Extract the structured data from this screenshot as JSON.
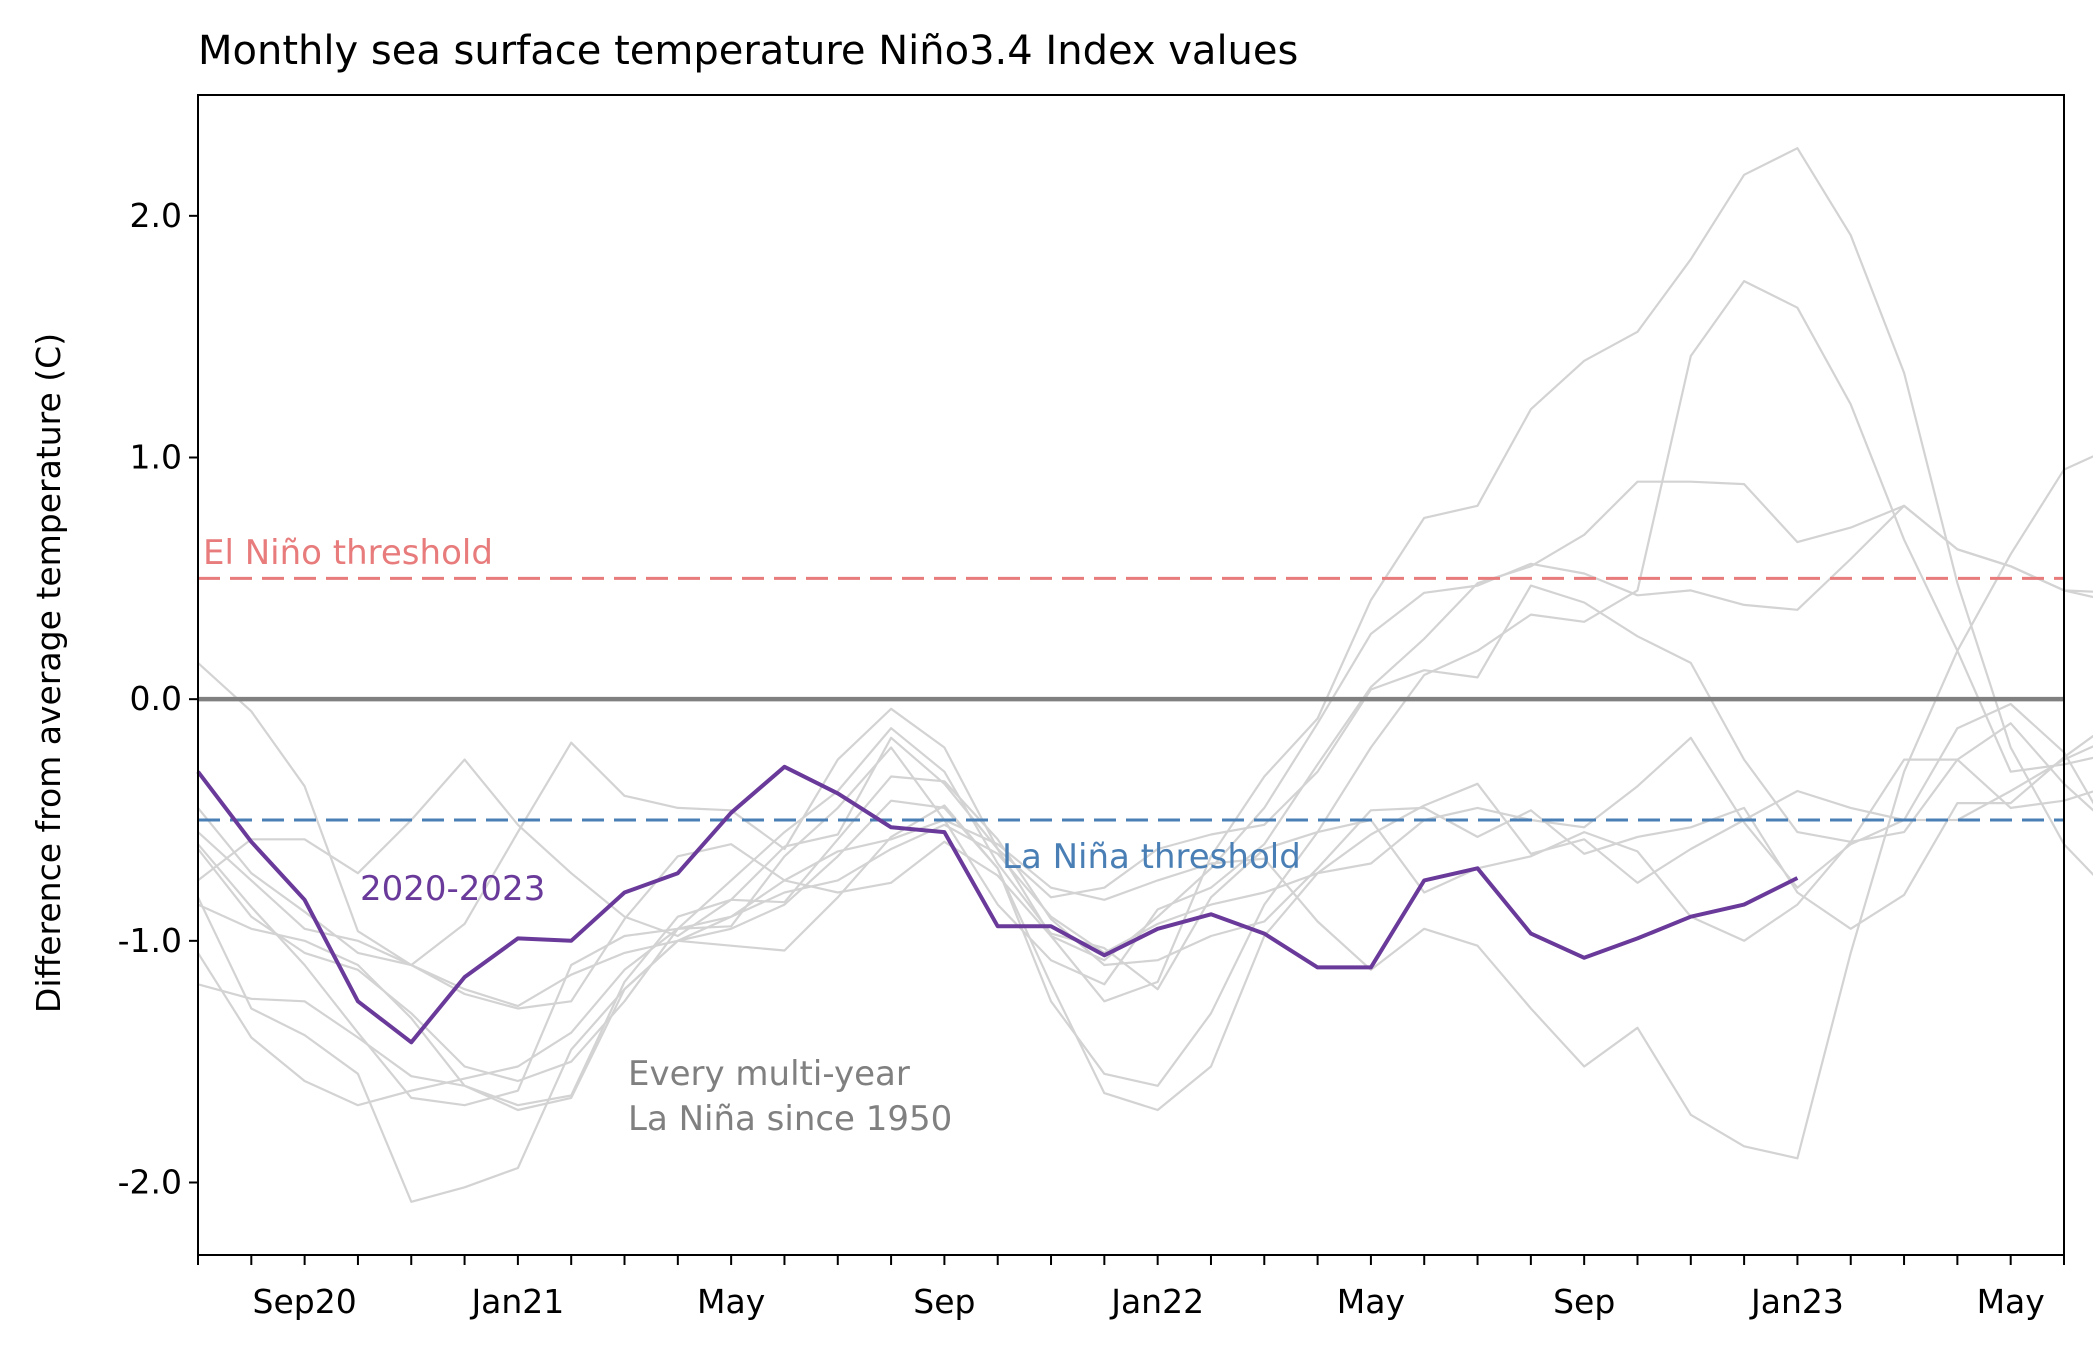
{
  "chart_data": {
    "type": "line",
    "title": "Monthly sea surface temperature Niño3.4 Index values",
    "xlabel": "",
    "ylabel": "Difference from average temperature (C)",
    "ylim": [
      -2.3,
      2.5
    ],
    "xlim": [
      "2020-07",
      "2023-06"
    ],
    "x_tick_labels": [
      {
        "month": "2020-09",
        "label": "Sep20"
      },
      {
        "month": "2021-01",
        "label": "Jan21"
      },
      {
        "month": "2021-05",
        "label": "May"
      },
      {
        "month": "2021-09",
        "label": "Sep"
      },
      {
        "month": "2022-01",
        "label": "Jan22"
      },
      {
        "month": "2022-05",
        "label": "May"
      },
      {
        "month": "2022-09",
        "label": "Sep"
      },
      {
        "month": "2023-01",
        "label": "Jan23"
      },
      {
        "month": "2023-05",
        "label": "May"
      }
    ],
    "y_ticks": [
      {
        "value": 2.0,
        "label": "2.0"
      },
      {
        "value": 1.0,
        "label": "1.0"
      },
      {
        "value": 0.0,
        "label": "0.0"
      },
      {
        "value": -1.0,
        "label": "-1.0"
      },
      {
        "value": -2.0,
        "label": "-2.0"
      }
    ],
    "reference_lines": [
      {
        "value": 0.5,
        "label": "El Niño threshold",
        "color": "#e87b7b",
        "style": "dashed"
      },
      {
        "value": -0.5,
        "label": "La Niña threshold",
        "color": "#4a7fb5",
        "style": "dashed"
      },
      {
        "value": 0.0,
        "label": "",
        "color": "#808080",
        "style": "solid"
      }
    ],
    "series": [
      {
        "name": "2020-2023",
        "color": "#6a3a9a",
        "highlight": true,
        "start": "2020-07",
        "values": [
          -0.3,
          -0.59,
          -0.83,
          -1.25,
          -1.42,
          -1.15,
          -0.99,
          -1.0,
          -0.8,
          -0.72,
          -0.47,
          -0.28,
          -0.39,
          -0.53,
          -0.55,
          -0.94,
          -0.94,
          -1.06,
          -0.95,
          -0.89,
          -0.97,
          -1.11,
          -1.11,
          -0.75,
          -0.7,
          -0.97,
          -1.07,
          -0.99,
          -0.9,
          -0.85,
          -0.74
        ]
      }
    ],
    "background_series": {
      "label": "Every multi-year\nLa Niña since 1950",
      "color": "#d3d3d3",
      "start": "2020-07",
      "lines": [
        [
          0.15,
          -0.05,
          -0.36,
          -0.96,
          -1.1,
          -0.93,
          -0.55,
          -0.18,
          -0.4,
          -0.45,
          -0.46,
          -0.62,
          -0.25,
          -0.04,
          -0.2,
          -0.62,
          -0.98,
          -1.25,
          -1.17,
          -0.65,
          -0.32,
          -0.08,
          0.41,
          0.75,
          0.8,
          1.2,
          1.4,
          1.52,
          1.82,
          2.17,
          2.28,
          1.92,
          1.35,
          0.48,
          -0.2,
          -0.6,
          -0.83
        ],
        [
          -0.6,
          -0.86,
          -1.1,
          -1.38,
          -1.65,
          -1.68,
          -1.62,
          -1.1,
          -0.98,
          -0.95,
          -0.94,
          -0.65,
          -0.45,
          -0.2,
          -0.5,
          -0.85,
          -1.08,
          -1.18,
          -0.87,
          -0.78,
          -0.6,
          -0.27,
          0.05,
          0.25,
          0.48,
          0.55,
          0.68,
          0.9,
          0.9,
          0.89,
          0.65,
          0.71,
          0.8,
          0.62,
          0.55,
          0.45,
          0.4
        ],
        [
          -0.75,
          -0.58,
          -0.58,
          -0.72,
          -0.5,
          -0.25,
          -0.52,
          -0.72,
          -0.9,
          -0.98,
          -0.83,
          -0.61,
          -0.56,
          -0.16,
          -0.35,
          -0.62,
          -0.82,
          -0.78,
          -0.62,
          -0.56,
          -0.52,
          -0.3,
          0.04,
          0.12,
          0.09,
          0.47,
          0.4,
          0.26,
          0.15,
          -0.25,
          -0.55,
          -0.59,
          -0.25,
          -0.25,
          -0.1,
          -0.35,
          -0.55
        ],
        [
          -0.62,
          -0.9,
          -1.05,
          -1.12,
          -1.3,
          -1.52,
          -1.58,
          -1.5,
          -1.25,
          -0.95,
          -0.75,
          -0.55,
          -0.38,
          -0.12,
          -0.3,
          -0.68,
          -0.97,
          -1.03,
          -1.2,
          -0.82,
          -0.62,
          -0.55,
          -0.5,
          -0.8,
          -0.7,
          -0.65,
          -0.55,
          -0.63,
          -0.9,
          -1.0,
          -0.85,
          -0.59,
          -0.55,
          -0.25,
          -0.45,
          -0.42,
          -0.35
        ],
        [
          -1.05,
          -1.4,
          -1.58,
          -1.68,
          -1.62,
          -1.57,
          -1.52,
          -1.38,
          -1.12,
          -0.95,
          -0.9,
          -0.8,
          -0.75,
          -0.62,
          -0.52,
          -0.64,
          -0.9,
          -1.05,
          -0.93,
          -0.85,
          -0.8,
          -0.72,
          -0.56,
          -0.44,
          -0.35,
          -0.64,
          -0.58,
          -0.76,
          -0.62,
          -0.5,
          -0.38,
          -0.45,
          -0.5,
          -0.5,
          -0.38,
          -0.25,
          -0.15
        ],
        [
          -1.18,
          -1.24,
          -1.25,
          -1.4,
          -1.56,
          -1.6,
          -1.68,
          -1.64,
          -1.17,
          -0.9,
          -0.83,
          -0.84,
          -0.58,
          -0.32,
          -0.34,
          -0.58,
          -0.91,
          -1.1,
          -1.08,
          -0.98,
          -0.92,
          -0.7,
          -0.46,
          -0.45,
          -0.57,
          -0.46,
          -0.64,
          -0.57,
          -0.53,
          -0.45,
          -0.8,
          -0.95,
          -0.81,
          -0.43,
          -0.43,
          -0.24,
          -0.08
        ],
        [
          -0.82,
          -1.28,
          -1.39,
          -1.55,
          -2.08,
          -2.02,
          -1.94,
          -1.45,
          -1.2,
          -1.0,
          -1.02,
          -1.04,
          -0.82,
          -0.57,
          -0.44,
          -0.7,
          -1.18,
          -1.63,
          -1.7,
          -1.52,
          -0.98,
          -0.72,
          -0.68,
          -0.5,
          -0.45,
          -0.5,
          -0.53,
          -0.36,
          -0.16,
          -0.51,
          -0.78,
          -0.6,
          -0.5,
          -0.12,
          -0.02,
          -0.22,
          -0.6
        ],
        [
          -0.45,
          -0.72,
          -0.88,
          -1.05,
          -1.1,
          -1.22,
          -1.28,
          -1.25,
          -0.91,
          -0.65,
          -0.6,
          -0.75,
          -0.8,
          -0.76,
          -0.59,
          -0.73,
          -0.98,
          -1.08,
          -0.9,
          -0.7,
          -0.45,
          -0.1,
          0.27,
          0.44,
          0.47,
          0.56,
          0.52,
          0.43,
          0.45,
          0.39,
          0.37,
          0.58,
          0.8,
          0.62,
          0.55,
          0.45,
          0.44
        ],
        [
          -0.85,
          -0.95,
          -1.0,
          -1.1,
          -1.32,
          -1.6,
          -1.7,
          -1.65,
          -1.2,
          -1.0,
          -0.95,
          -0.85,
          -0.65,
          -0.42,
          -0.45,
          -0.7,
          -1.25,
          -1.55,
          -1.6,
          -1.3,
          -0.85,
          -0.55,
          -0.2,
          0.1,
          0.2,
          0.35,
          0.32,
          0.45,
          1.42,
          1.73,
          1.62,
          1.22,
          0.66,
          0.2,
          -0.3,
          -0.27,
          -0.22
        ],
        [
          -0.55,
          -0.75,
          -0.95,
          -1.0,
          -1.1,
          -1.2,
          -1.27,
          -1.14,
          -1.05,
          -1.0,
          -0.9,
          -0.75,
          -0.63,
          -0.58,
          -0.5,
          -0.6,
          -0.78,
          -0.83,
          -0.75,
          -0.68,
          -0.66,
          -0.92,
          -1.12,
          -0.95,
          -1.02,
          -1.28,
          -1.52,
          -1.36,
          -1.72,
          -1.85,
          -1.9,
          -1.05,
          -0.3,
          0.2,
          0.6,
          0.95,
          1.05
        ]
      ]
    },
    "annotations": [
      {
        "text": "2020-2023",
        "color": "#6a3a9a"
      },
      {
        "text": "El Niño threshold",
        "color": "#e87b7b"
      },
      {
        "text": "La Niña threshold",
        "color": "#4a7fb5"
      },
      {
        "text": "Every multi-year\nLa Niña since 1950",
        "color": "#808080"
      }
    ]
  }
}
